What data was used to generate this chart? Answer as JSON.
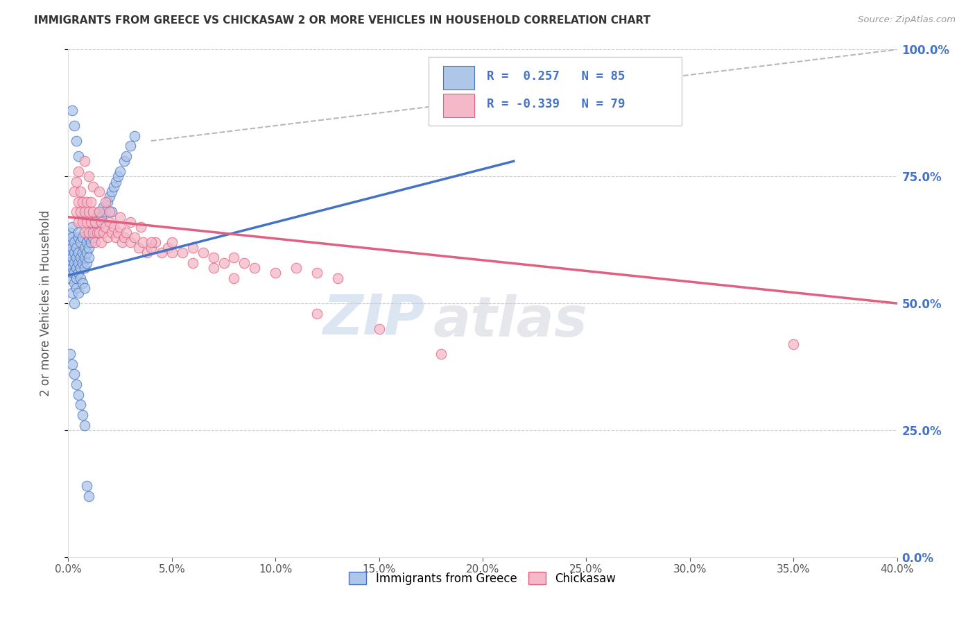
{
  "title": "IMMIGRANTS FROM GREECE VS CHICKASAW 2 OR MORE VEHICLES IN HOUSEHOLD CORRELATION CHART",
  "source": "Source: ZipAtlas.com",
  "xmin": 0.0,
  "xmax": 0.4,
  "ymin": 0.0,
  "ymax": 1.0,
  "legend_label1": "Immigrants from Greece",
  "legend_label2": "Chickasaw",
  "R1": 0.257,
  "N1": 85,
  "R2": -0.339,
  "N2": 79,
  "color_blue": "#aec6e8",
  "color_pink": "#f4b8c8",
  "line_blue": "#4472c4",
  "line_pink": "#e06080",
  "line_dashed": "#b8b8b8",
  "watermark_zip": "ZIP",
  "watermark_atlas": "atlas",
  "blue_scatter_x": [
    0.001,
    0.001,
    0.001,
    0.001,
    0.001,
    0.002,
    0.002,
    0.002,
    0.002,
    0.002,
    0.002,
    0.002,
    0.003,
    0.003,
    0.003,
    0.003,
    0.003,
    0.003,
    0.004,
    0.004,
    0.004,
    0.004,
    0.004,
    0.005,
    0.005,
    0.005,
    0.005,
    0.005,
    0.005,
    0.006,
    0.006,
    0.006,
    0.006,
    0.007,
    0.007,
    0.007,
    0.007,
    0.008,
    0.008,
    0.008,
    0.008,
    0.009,
    0.009,
    0.009,
    0.01,
    0.01,
    0.01,
    0.011,
    0.011,
    0.012,
    0.012,
    0.013,
    0.013,
    0.014,
    0.014,
    0.015,
    0.016,
    0.017,
    0.018,
    0.019,
    0.02,
    0.021,
    0.022,
    0.023,
    0.024,
    0.025,
    0.027,
    0.028,
    0.03,
    0.032,
    0.001,
    0.002,
    0.003,
    0.004,
    0.005,
    0.006,
    0.007,
    0.008,
    0.009,
    0.01,
    0.002,
    0.003,
    0.004,
    0.005,
    0.021
  ],
  "blue_scatter_y": [
    0.6,
    0.62,
    0.58,
    0.64,
    0.55,
    0.61,
    0.63,
    0.57,
    0.59,
    0.65,
    0.52,
    0.56,
    0.6,
    0.58,
    0.54,
    0.62,
    0.56,
    0.5,
    0.59,
    0.61,
    0.55,
    0.57,
    0.53,
    0.63,
    0.6,
    0.58,
    0.56,
    0.64,
    0.52,
    0.62,
    0.59,
    0.57,
    0.55,
    0.63,
    0.6,
    0.58,
    0.54,
    0.61,
    0.59,
    0.57,
    0.53,
    0.62,
    0.6,
    0.58,
    0.63,
    0.61,
    0.59,
    0.64,
    0.62,
    0.65,
    0.63,
    0.66,
    0.64,
    0.67,
    0.65,
    0.68,
    0.67,
    0.69,
    0.68,
    0.7,
    0.71,
    0.72,
    0.73,
    0.74,
    0.75,
    0.76,
    0.78,
    0.79,
    0.81,
    0.83,
    0.4,
    0.38,
    0.36,
    0.34,
    0.32,
    0.3,
    0.28,
    0.26,
    0.14,
    0.12,
    0.88,
    0.85,
    0.82,
    0.79,
    0.68
  ],
  "pink_scatter_x": [
    0.003,
    0.004,
    0.004,
    0.005,
    0.005,
    0.006,
    0.006,
    0.007,
    0.007,
    0.008,
    0.008,
    0.009,
    0.009,
    0.01,
    0.01,
    0.011,
    0.011,
    0.012,
    0.012,
    0.013,
    0.013,
    0.014,
    0.015,
    0.015,
    0.016,
    0.016,
    0.017,
    0.018,
    0.019,
    0.02,
    0.021,
    0.022,
    0.023,
    0.024,
    0.025,
    0.026,
    0.027,
    0.028,
    0.03,
    0.032,
    0.034,
    0.036,
    0.038,
    0.04,
    0.042,
    0.045,
    0.048,
    0.05,
    0.055,
    0.06,
    0.065,
    0.07,
    0.075,
    0.08,
    0.085,
    0.09,
    0.1,
    0.11,
    0.12,
    0.13,
    0.005,
    0.008,
    0.01,
    0.012,
    0.015,
    0.018,
    0.02,
    0.025,
    0.03,
    0.035,
    0.04,
    0.05,
    0.06,
    0.07,
    0.08,
    0.12,
    0.15,
    0.18,
    0.35
  ],
  "pink_scatter_y": [
    0.72,
    0.68,
    0.74,
    0.7,
    0.66,
    0.72,
    0.68,
    0.7,
    0.66,
    0.68,
    0.64,
    0.7,
    0.66,
    0.68,
    0.64,
    0.7,
    0.66,
    0.68,
    0.64,
    0.66,
    0.62,
    0.64,
    0.68,
    0.64,
    0.66,
    0.62,
    0.64,
    0.65,
    0.63,
    0.66,
    0.64,
    0.65,
    0.63,
    0.64,
    0.65,
    0.62,
    0.63,
    0.64,
    0.62,
    0.63,
    0.61,
    0.62,
    0.6,
    0.61,
    0.62,
    0.6,
    0.61,
    0.62,
    0.6,
    0.61,
    0.6,
    0.59,
    0.58,
    0.59,
    0.58,
    0.57,
    0.56,
    0.57,
    0.56,
    0.55,
    0.76,
    0.78,
    0.75,
    0.73,
    0.72,
    0.7,
    0.68,
    0.67,
    0.66,
    0.65,
    0.62,
    0.6,
    0.58,
    0.57,
    0.55,
    0.48,
    0.45,
    0.4,
    0.42
  ],
  "blue_line_x": [
    0.0,
    0.215
  ],
  "blue_line_y": [
    0.555,
    0.78
  ],
  "pink_line_x": [
    0.0,
    0.4
  ],
  "pink_line_y": [
    0.67,
    0.5
  ],
  "dashed_line_x": [
    0.04,
    0.4
  ],
  "dashed_line_y": [
    0.82,
    1.0
  ]
}
